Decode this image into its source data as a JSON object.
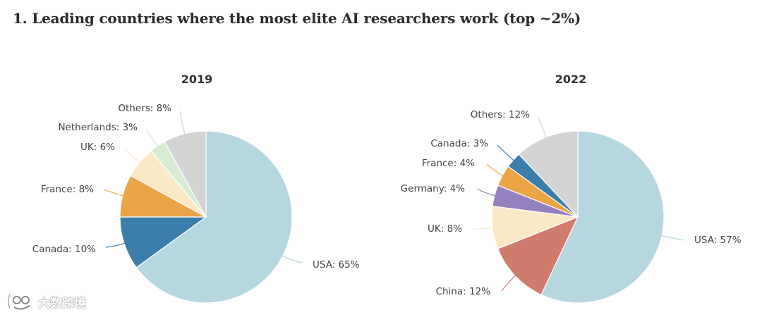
{
  "page": {
    "title": "1. Leading countries where the most elite AI researchers work (top ~2%)",
    "watermark": "大数跨境"
  },
  "chart_data": [
    {
      "type": "pie",
      "title": "2019",
      "unit": "%",
      "slices": [
        {
          "label": "USA",
          "value": 65,
          "color": "#b6d7e0"
        },
        {
          "label": "Canada",
          "value": 10,
          "color": "#3b7eab"
        },
        {
          "label": "France",
          "value": 8,
          "color": "#eba546"
        },
        {
          "label": "UK",
          "value": 6,
          "color": "#fbe9c6"
        },
        {
          "label": "Netherlands",
          "value": 3,
          "color": "#d6ebcf"
        },
        {
          "label": "Others",
          "value": 8,
          "color": "#d4d4d4"
        }
      ]
    },
    {
      "type": "pie",
      "title": "2022",
      "unit": "%",
      "slices": [
        {
          "label": "USA",
          "value": 57,
          "color": "#b6d7e0"
        },
        {
          "label": "China",
          "value": 12,
          "color": "#cf7b6e"
        },
        {
          "label": "UK",
          "value": 8,
          "color": "#fbe9c6"
        },
        {
          "label": "Germany",
          "value": 4,
          "color": "#9581bf"
        },
        {
          "label": "France",
          "value": 4,
          "color": "#eba546"
        },
        {
          "label": "Canada",
          "value": 3,
          "color": "#3b7eab"
        },
        {
          "label": "Others",
          "value": 12,
          "color": "#d4d4d4"
        }
      ]
    }
  ]
}
